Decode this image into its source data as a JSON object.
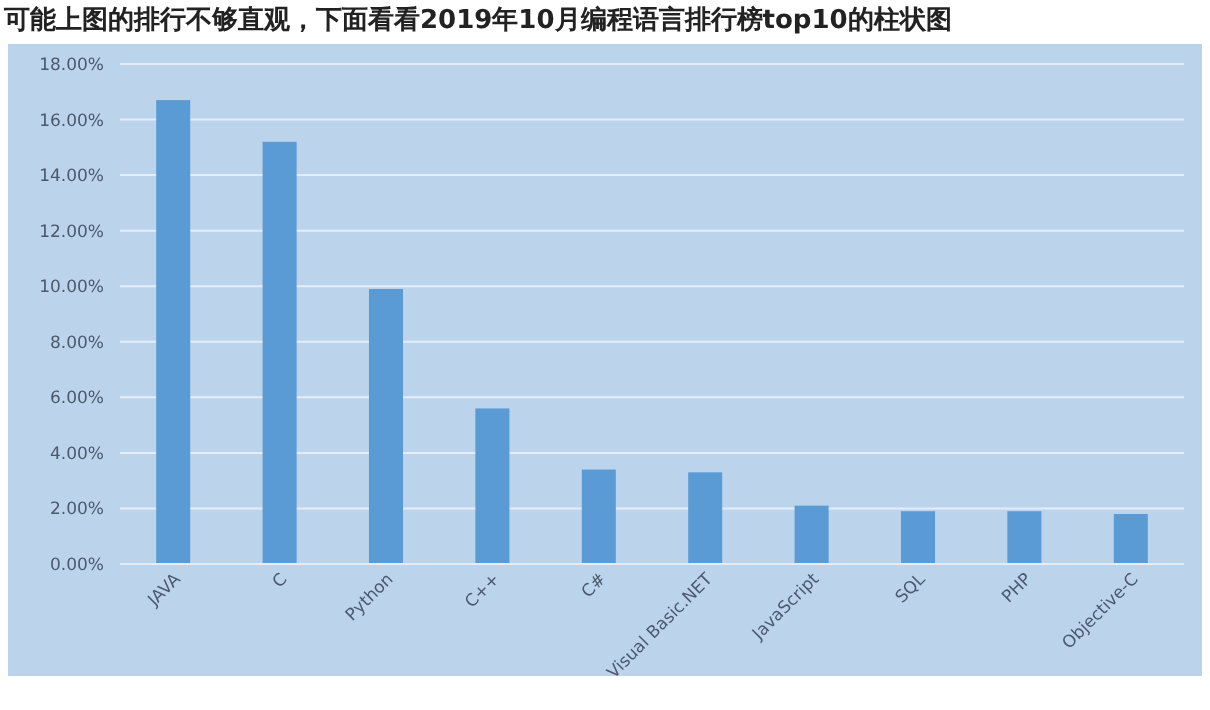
{
  "chart_data": {
    "type": "bar",
    "title": "可能上图的排行不够直观，下面看看2019年10月编程语言排行榜top10的柱状图",
    "categories": [
      "JAVA",
      "C",
      "Python",
      "C++",
      "C#",
      "Visual Basic.NET",
      "JavaScript",
      "SQL",
      "PHP",
      "Objective-C"
    ],
    "values": [
      16.7,
      15.2,
      9.9,
      5.6,
      3.4,
      3.3,
      2.1,
      1.9,
      1.9,
      1.8
    ],
    "color": "#5b9bd5",
    "ylim": [
      0,
      18
    ],
    "yticks": [
      {
        "value": 0,
        "label": "0.00%"
      },
      {
        "value": 2,
        "label": "2.00%"
      },
      {
        "value": 4,
        "label": "4.00%"
      },
      {
        "value": 6,
        "label": "6.00%"
      },
      {
        "value": 8,
        "label": "8.00%"
      },
      {
        "value": 10,
        "label": "10.00%"
      },
      {
        "value": 12,
        "label": "12.00%"
      },
      {
        "value": 14,
        "label": "14.00%"
      },
      {
        "value": 16,
        "label": "16.00%"
      },
      {
        "value": 18,
        "label": "18.00%"
      }
    ],
    "grid": "y"
  }
}
